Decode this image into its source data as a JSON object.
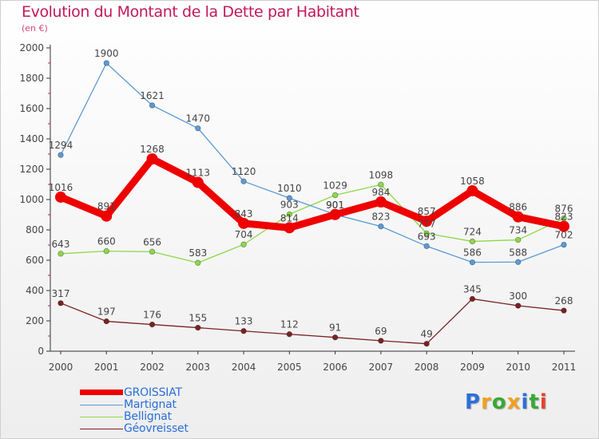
{
  "header": {
    "title": "Evolution du Montant de la Dette par Habitant",
    "subtitle": "(en €)"
  },
  "chart_data": {
    "type": "line",
    "title": "Evolution du Montant de la Dette par Habitant",
    "subtitle": "(en €)",
    "x": [
      "2000",
      "2001",
      "2002",
      "2003",
      "2004",
      "2005",
      "2006",
      "2007",
      "2008",
      "2009",
      "2010",
      "2011"
    ],
    "ylim": [
      0,
      2000
    ],
    "yticks": [
      0,
      200,
      400,
      600,
      800,
      1000,
      1200,
      1400,
      1600,
      1800,
      2000
    ],
    "grid": false,
    "legend_position": "bottom-left",
    "series": [
      {
        "name": "GROISSIAT",
        "color": "#ee0000",
        "values": [
          1016,
          891,
          1268,
          1113,
          843,
          814,
          901,
          984,
          857,
          1058,
          886,
          823
        ]
      },
      {
        "name": "Martignat",
        "color": "#5b9bd5",
        "values": [
          1294,
          1900,
          1621,
          1470,
          1120,
          1010,
          901,
          823,
          693,
          586,
          588,
          702
        ]
      },
      {
        "name": "Bellignat",
        "color": "#8cd84a",
        "values": [
          643,
          660,
          656,
          583,
          704,
          903,
          1029,
          1098,
          777,
          724,
          734,
          876
        ]
      },
      {
        "name": "Géovreisset",
        "color": "#7a2222",
        "values": [
          317,
          197,
          176,
          155,
          133,
          112,
          91,
          69,
          49,
          345,
          300,
          268
        ]
      }
    ]
  },
  "logo": {
    "letters": [
      "P",
      "r",
      "o",
      "x",
      "i",
      "t",
      "i"
    ],
    "colors": [
      "#2e6fd8",
      "#f0a020",
      "#3aa935",
      "#f0a020",
      "#2e6fd8",
      "#3aa935",
      "#e8402a"
    ]
  }
}
